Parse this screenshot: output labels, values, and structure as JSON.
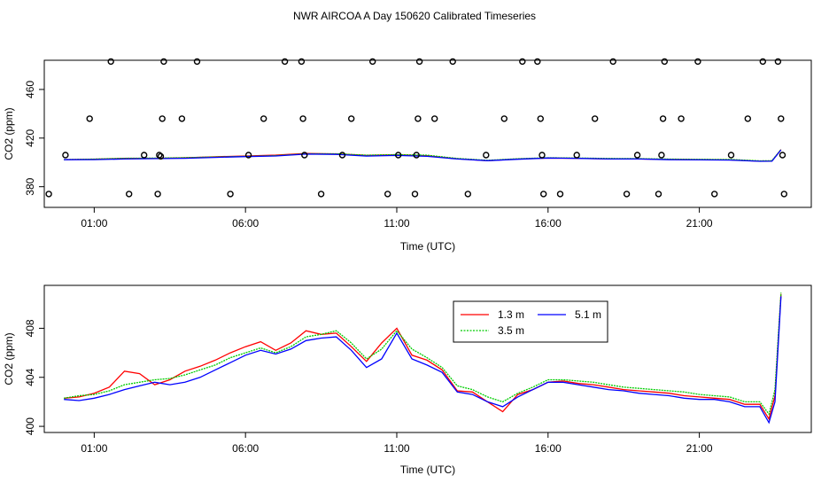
{
  "page": {
    "title": "NWR AIRCOA A  Day 150620  Calibrated Timeseries"
  },
  "chart_data": [
    {
      "type": "line",
      "id": "top",
      "title": "",
      "xlabel": "Time (UTC)",
      "ylabel": "CO2 (ppm)",
      "xlim": [
        -0.65,
        24.7
      ],
      "ylim": [
        363,
        484
      ],
      "xticks": [
        1,
        6,
        11,
        16,
        21
      ],
      "xtick_labels": [
        "01:00",
        "06:00",
        "11:00",
        "16:00",
        "21:00"
      ],
      "yticks": [
        380,
        420,
        460
      ],
      "ytick_labels": [
        "380",
        "420",
        "460"
      ],
      "colors": {
        "1.3 m": "#ff0000",
        "3.5 m": "#00cc00",
        "5.1 m": "#0000ff"
      },
      "series": [
        {
          "name": "1.3 m",
          "x": [
            0,
            1,
            2,
            3,
            4,
            5,
            6,
            7,
            8,
            9,
            10,
            11,
            12,
            13,
            14,
            15,
            16,
            17,
            18,
            19,
            20,
            21,
            22,
            23,
            23.4,
            23.7
          ],
          "y": [
            402.3,
            402.6,
            403.3,
            403.4,
            403.8,
            404.6,
            405.3,
            406.0,
            407.3,
            407.0,
            405.8,
            406.2,
            405.6,
            403.0,
            401.4,
            402.8,
            403.6,
            403.4,
            402.9,
            402.9,
            402.4,
            402.3,
            402.1,
            401.0,
            401.2,
            410.5
          ]
        },
        {
          "name": "3.5 m",
          "x": [
            0,
            1,
            2,
            3,
            4,
            5,
            6,
            7,
            8,
            9,
            10,
            11,
            12,
            13,
            14,
            15,
            16,
            17,
            18,
            19,
            20,
            21,
            22,
            23,
            23.4,
            23.7
          ],
          "y": [
            402.3,
            402.7,
            403.4,
            403.5,
            403.9,
            404.5,
            405.0,
            405.6,
            407.0,
            407.1,
            405.9,
            406.4,
            405.9,
            403.2,
            401.7,
            403.0,
            403.8,
            403.6,
            403.2,
            403.1,
            402.7,
            402.5,
            402.4,
            401.3,
            401.4,
            410.6
          ]
        },
        {
          "name": "5.1 m",
          "x": [
            0,
            1,
            2,
            3,
            4,
            5,
            6,
            7,
            8,
            9,
            10,
            11,
            12,
            13,
            14,
            15,
            16,
            17,
            18,
            19,
            20,
            21,
            22,
            23,
            23.4,
            23.7
          ],
          "y": [
            402.2,
            402.3,
            402.8,
            403.1,
            403.4,
            404.1,
            404.8,
            405.3,
            406.8,
            406.6,
            405.2,
            405.7,
            405.0,
            402.8,
            401.4,
            402.6,
            403.6,
            403.3,
            402.8,
            402.8,
            402.2,
            402.1,
            401.9,
            400.9,
            401.0,
            410.3
          ]
        }
      ],
      "outlier_points": {
        "x": [
          -0.5,
          0.05,
          0.85,
          1.55,
          2.15,
          2.65,
          3.1,
          3.15,
          3.2,
          3.25,
          3.3,
          3.9,
          4.4,
          5.5,
          6.1,
          6.6,
          7.3,
          7.85,
          7.9,
          7.95,
          8.5,
          9.2,
          9.5,
          10.2,
          10.7,
          11.05,
          11.6,
          11.65,
          11.7,
          11.75,
          12.25,
          12.85,
          13.35,
          13.95,
          14.55,
          15.15,
          15.65,
          15.75,
          15.8,
          15.85,
          16.4,
          16.95,
          17.55,
          18.15,
          18.6,
          18.95,
          19.65,
          19.75,
          19.8,
          19.85,
          20.4,
          20.95,
          21.5,
          22.05,
          22.6,
          23.1,
          23.6,
          23.7,
          23.75,
          23.8
        ],
        "y": [
          374,
          406,
          436,
          483,
          374,
          406,
          374,
          406,
          405,
          436,
          483,
          436,
          483,
          374,
          406,
          436,
          483,
          483,
          436,
          406,
          374,
          406,
          436,
          483,
          374,
          406,
          374,
          406,
          436,
          483,
          436,
          483,
          374,
          406,
          436,
          483,
          483,
          436,
          406,
          374,
          374,
          406,
          436,
          483,
          374,
          406,
          374,
          406,
          436,
          483,
          436,
          483,
          374,
          406,
          436,
          483,
          483,
          436,
          406,
          374
        ]
      }
    },
    {
      "type": "line",
      "id": "bottom",
      "title": "",
      "xlabel": "Time (UTC)",
      "ylabel": "CO2 (ppm)",
      "xlim": [
        -0.65,
        24.7
      ],
      "ylim": [
        399.5,
        411.5
      ],
      "xticks": [
        1,
        6,
        11,
        16,
        21
      ],
      "xtick_labels": [
        "01:00",
        "06:00",
        "11:00",
        "16:00",
        "21:00"
      ],
      "yticks": [
        400,
        404,
        408
      ],
      "ytick_labels": [
        "400",
        "404",
        "408"
      ],
      "colors": {
        "1.3 m": "#ff0000",
        "3.5 m": "#00cc00",
        "5.1 m": "#0000ff"
      },
      "legend": {
        "position": "top-center",
        "entries": [
          "1.3 m",
          "3.5 m",
          "5.1 m"
        ]
      },
      "series": [
        {
          "name": "1.3 m",
          "x": [
            0,
            0.5,
            1,
            1.5,
            2,
            2.5,
            3,
            3.5,
            4,
            4.5,
            5,
            5.5,
            6,
            6.5,
            7,
            7.5,
            8,
            8.5,
            9,
            9.5,
            10,
            10.5,
            11,
            11.5,
            12,
            12.5,
            13,
            13.5,
            14,
            14.5,
            15,
            15.5,
            16,
            16.5,
            17,
            17.5,
            18,
            18.5,
            19,
            19.5,
            20,
            20.5,
            21,
            21.5,
            22,
            22.5,
            23,
            23.3,
            23.5,
            23.7
          ],
          "y": [
            402.3,
            402.4,
            402.7,
            403.2,
            404.5,
            404.3,
            403.4,
            403.8,
            404.5,
            404.9,
            405.4,
            406.0,
            406.5,
            406.9,
            406.2,
            406.8,
            407.8,
            407.5,
            407.6,
            406.5,
            405.3,
            406.8,
            408.0,
            405.8,
            405.4,
            404.6,
            402.9,
            402.8,
            402.0,
            401.2,
            402.6,
            403.0,
            403.6,
            403.7,
            403.5,
            403.4,
            403.2,
            403.0,
            402.9,
            402.8,
            402.7,
            402.5,
            402.4,
            402.3,
            402.2,
            401.8,
            401.8,
            400.6,
            402.5,
            410.8
          ]
        },
        {
          "name": "3.5 m",
          "x": [
            0,
            0.5,
            1,
            1.5,
            2,
            2.5,
            3,
            3.5,
            4,
            4.5,
            5,
            5.5,
            6,
            6.5,
            7,
            7.5,
            8,
            8.5,
            9,
            9.5,
            10,
            10.5,
            11,
            11.5,
            12,
            12.5,
            13,
            13.5,
            14,
            14.5,
            15,
            15.5,
            16,
            16.5,
            17,
            17.5,
            18,
            18.5,
            19,
            19.5,
            20,
            20.5,
            21,
            21.5,
            22,
            22.5,
            23,
            23.3,
            23.5,
            23.7
          ],
          "y": [
            402.3,
            402.5,
            402.6,
            402.9,
            403.4,
            403.6,
            403.8,
            403.9,
            404.2,
            404.6,
            405.0,
            405.6,
            406.0,
            406.4,
            406.0,
            406.5,
            407.3,
            407.5,
            407.8,
            406.8,
            405.5,
            406.3,
            407.8,
            406.3,
            405.6,
            404.8,
            403.3,
            403.0,
            402.4,
            402.0,
            402.7,
            403.2,
            403.8,
            403.8,
            403.7,
            403.6,
            403.4,
            403.2,
            403.1,
            403.0,
            402.9,
            402.8,
            402.6,
            402.5,
            402.4,
            402.0,
            402.0,
            401.0,
            403.0,
            410.9
          ]
        },
        {
          "name": "5.1 m",
          "x": [
            0,
            0.5,
            1,
            1.5,
            2,
            2.5,
            3,
            3.5,
            4,
            4.5,
            5,
            5.5,
            6,
            6.5,
            7,
            7.5,
            8,
            8.5,
            9,
            9.5,
            10,
            10.5,
            11,
            11.5,
            12,
            12.5,
            13,
            13.5,
            14,
            14.5,
            15,
            15.5,
            16,
            16.5,
            17,
            17.5,
            18,
            18.5,
            19,
            19.5,
            20,
            20.5,
            21,
            21.5,
            22,
            22.5,
            23,
            23.3,
            23.5,
            23.7
          ],
          "y": [
            402.2,
            402.1,
            402.3,
            402.6,
            403.0,
            403.3,
            403.6,
            403.4,
            403.6,
            404.0,
            404.6,
            405.2,
            405.8,
            406.2,
            405.9,
            406.3,
            407.0,
            407.2,
            407.3,
            406.2,
            404.8,
            405.5,
            407.6,
            405.5,
            405.0,
            404.4,
            402.8,
            402.6,
            402.0,
            401.6,
            402.4,
            403.0,
            403.6,
            403.6,
            403.4,
            403.2,
            403.0,
            402.9,
            402.7,
            402.6,
            402.5,
            402.3,
            402.2,
            402.2,
            402.0,
            401.6,
            401.6,
            400.3,
            402.0,
            410.6
          ]
        }
      ]
    }
  ]
}
